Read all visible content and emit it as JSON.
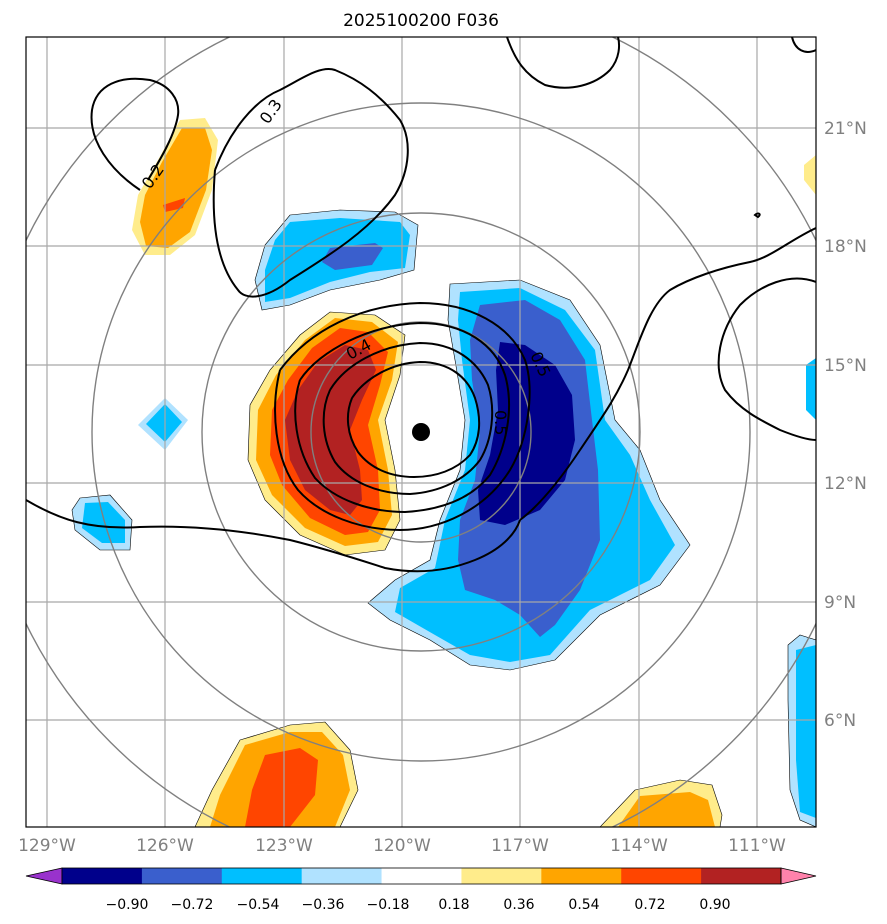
{
  "title": "2025100200 F036",
  "lon_ticks": [
    "129°W",
    "126°W",
    "123°W",
    "120°W",
    "117°W",
    "114°W",
    "111°W"
  ],
  "lat_ticks": [
    "21°N",
    "18°N",
    "15°N",
    "12°N",
    "9°N",
    "6°N"
  ],
  "colorbar": {
    "levels": [
      "−0.90",
      "−0.72",
      "−0.54",
      "−0.36",
      "−0.18",
      "0.18",
      "0.36",
      "0.54",
      "0.72",
      "0.90"
    ],
    "colors": [
      "#9932CC",
      "#00008B",
      "#3A5FCD",
      "#00BFFF",
      "#B0E2FF",
      "#FFFFFF",
      "#FFEC8B",
      "#FFA500",
      "#FF4500",
      "#B22222",
      "#FF82AB"
    ]
  },
  "contour_labels": [
    "0.2",
    "0.3",
    "0.4",
    "0.5",
    "0.5"
  ],
  "storm_center": {
    "lon": -119.5,
    "lat": 13.3
  },
  "map_extent": {
    "lon_min": -129.5,
    "lon_max": -109.5,
    "lat_min": 3.0,
    "lat_max": 23.0
  }
}
